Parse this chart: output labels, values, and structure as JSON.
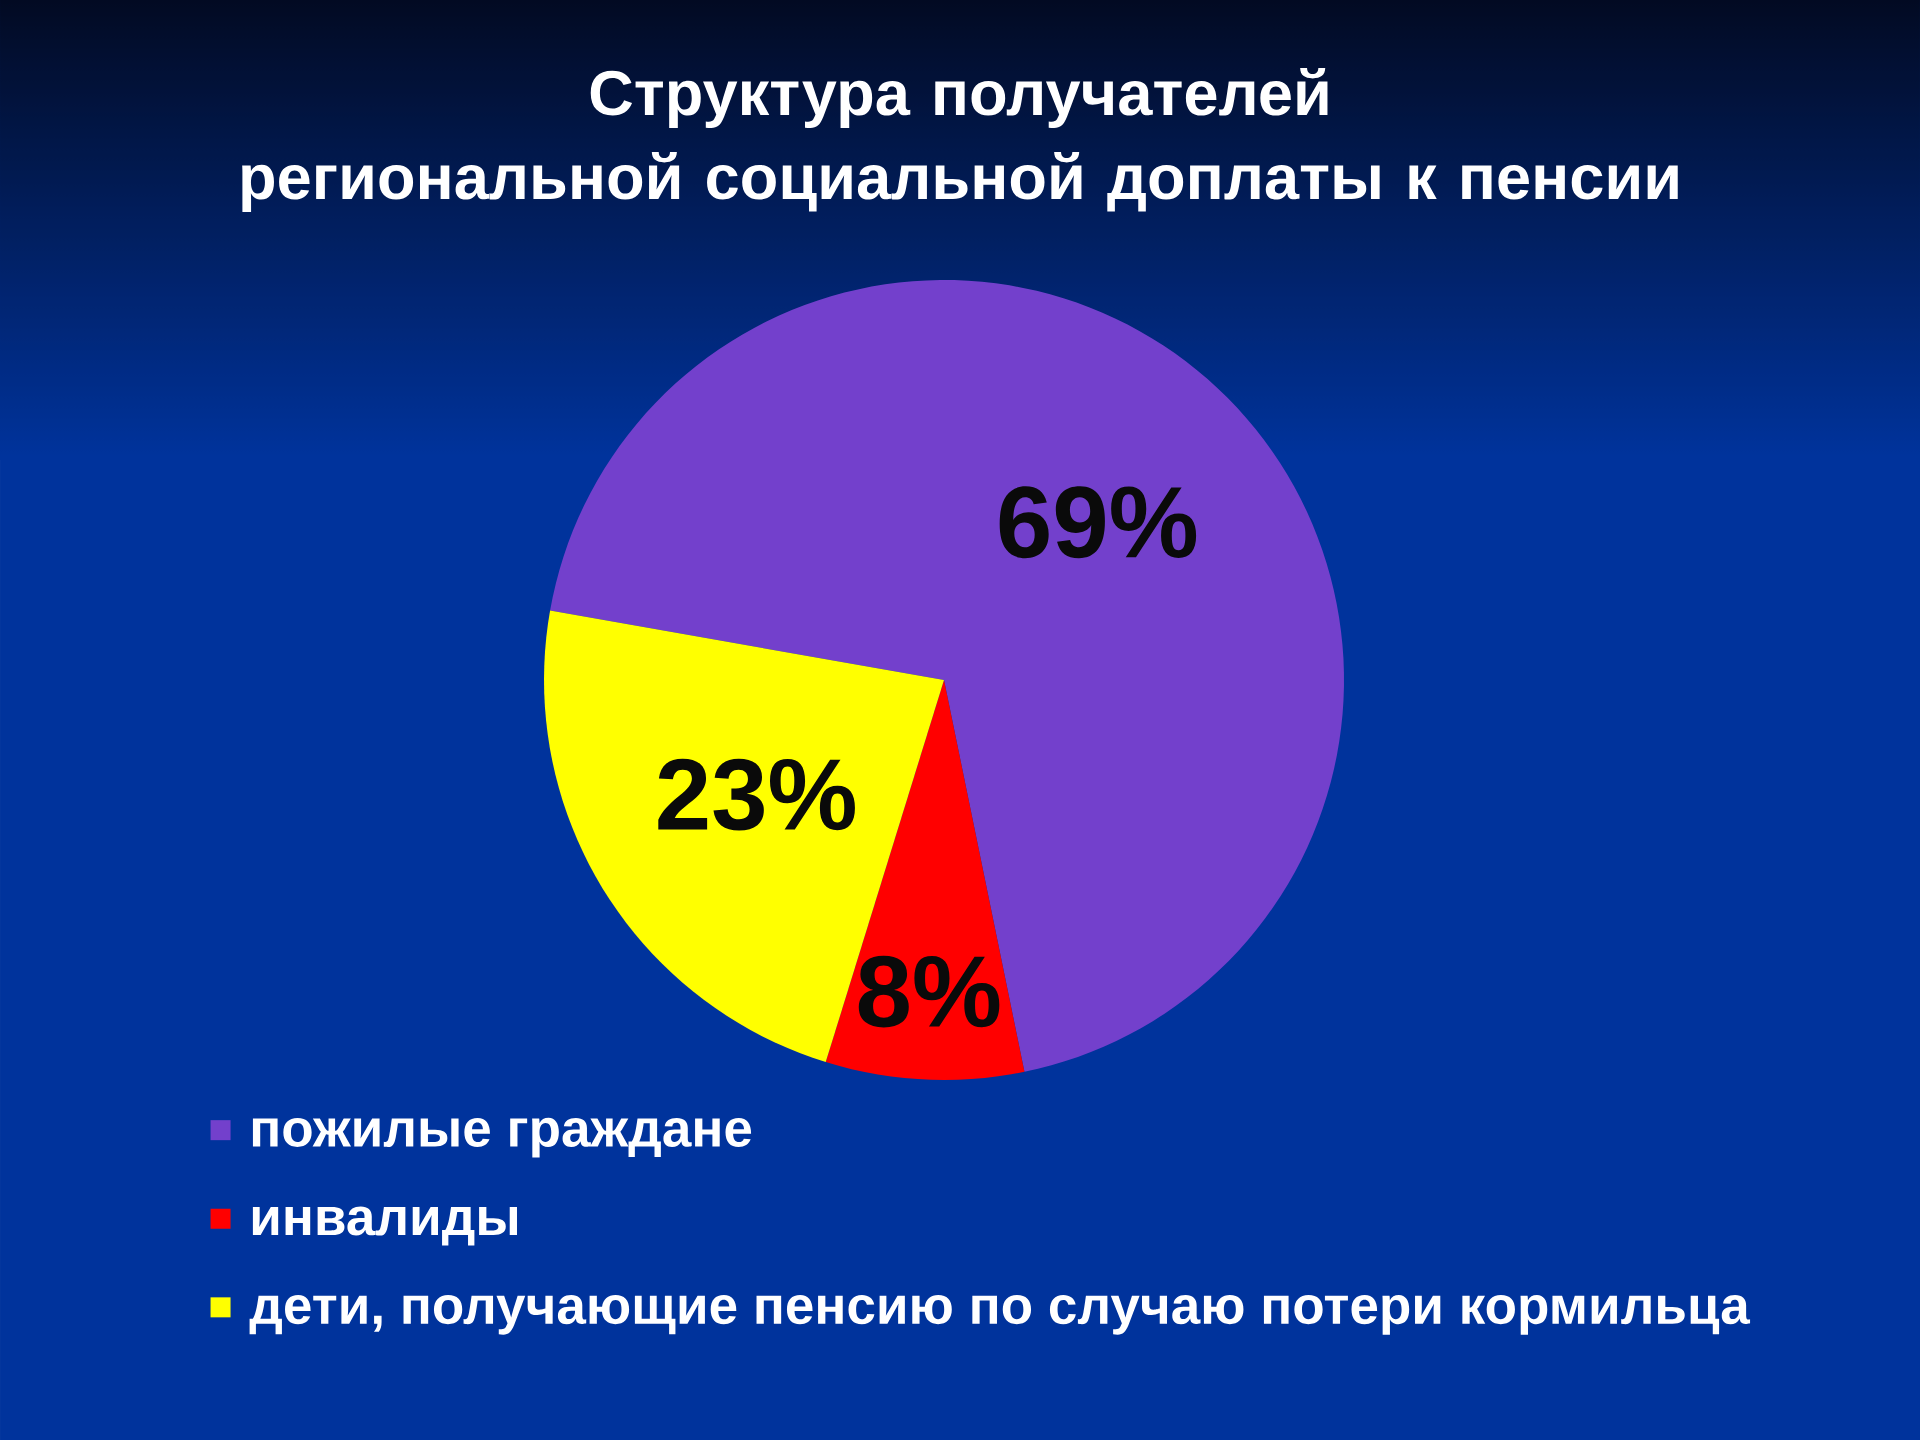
{
  "chart_data": {
    "type": "pie",
    "title": "Структура получателей\nрегиональной социальной доплаты к пенсии",
    "categories": [
      "пожилые граждане",
      "инвалиды",
      "дети, получающие пенсию по случаю потери кормильца"
    ],
    "values": [
      69,
      8,
      23
    ],
    "colors": [
      "#7340cc",
      "#ff0000",
      "#ffff00"
    ],
    "value_labels": [
      "69%",
      "8%",
      "23%"
    ],
    "legend": "bottom"
  }
}
